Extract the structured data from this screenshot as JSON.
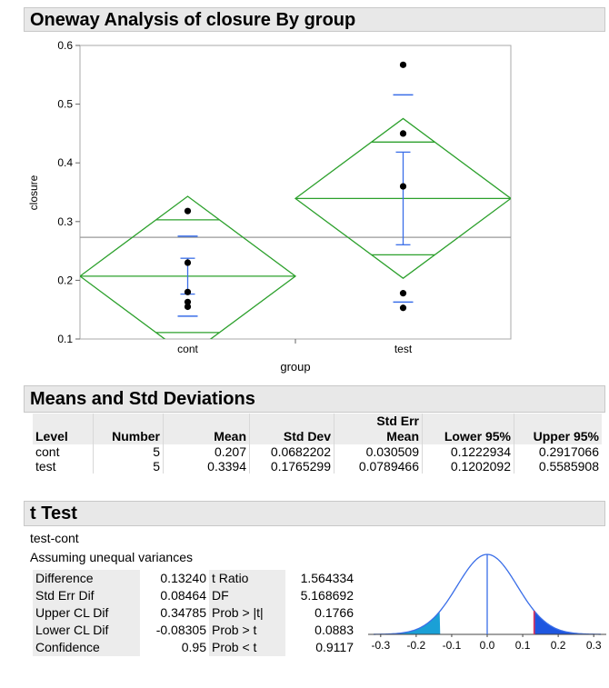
{
  "sections": {
    "oneway_title": "Oneway Analysis of closure By group",
    "means_title": "Means and Std Deviations",
    "ttest_title": "t Test"
  },
  "chart_data": [
    {
      "type": "scatter",
      "title": "Oneway Analysis of closure By group",
      "xlabel": "group",
      "ylabel": "closure",
      "categories": [
        "cont",
        "test"
      ],
      "ylim": [
        0.1,
        0.6
      ],
      "yticks": [
        0.1,
        0.2,
        0.3,
        0.4,
        0.5,
        0.6
      ],
      "grand_mean": 0.2732,
      "points": {
        "cont": [
          0.318,
          0.23,
          0.18,
          0.163,
          0.155
        ],
        "test": [
          0.567,
          0.45,
          0.36,
          0.178,
          0.153
        ]
      },
      "means_diamonds": [
        {
          "level": "cont",
          "mean": 0.207,
          "lower95": 0.071,
          "upper95": 0.343,
          "overlap_low": 0.111,
          "overlap_high": 0.303
        },
        {
          "level": "test",
          "mean": 0.3394,
          "lower95": 0.2034,
          "upper95": 0.4754,
          "overlap_low": 0.2434,
          "overlap_high": 0.4354
        }
      ],
      "error_bars": [
        {
          "level": "cont",
          "mean": 0.207,
          "err_low": 0.1765,
          "err_high": 0.2375,
          "sd_low": 0.1388,
          "sd_high": 0.2752
        },
        {
          "level": "test",
          "mean": 0.3394,
          "err_low": 0.2605,
          "err_high": 0.4183,
          "sd_low": 0.1629,
          "sd_high": 0.5159
        }
      ],
      "colors": {
        "diamond": "#2ca02c",
        "error_bar": "#3a6ee8",
        "mean_line": "#999999",
        "point": "#000000"
      }
    },
    {
      "type": "area",
      "title": "",
      "xlabel": "",
      "ylabel": "",
      "xlim": [
        -0.32,
        0.32
      ],
      "xticks": [
        -0.3,
        -0.2,
        -0.1,
        0.0,
        0.1,
        0.2,
        0.3
      ],
      "estimate": 0.1324,
      "se": 0.08464,
      "colors": {
        "curve": "#3a6ee8",
        "left_tail": "#1aa0d6",
        "right_tail": "#1e56e0",
        "estimate_line": "#d8345f"
      }
    }
  ],
  "means_table": {
    "headers": {
      "level": "Level",
      "number": "Number",
      "mean": "Mean",
      "std_dev": "Std Dev",
      "std_err_top": "Std Err",
      "std_err_bottom": "Mean",
      "lower": "Lower 95%",
      "upper": "Upper 95%"
    },
    "rows": [
      {
        "level": "cont",
        "number": "5",
        "mean": "0.207",
        "std_dev": "0.0682202",
        "std_err": "0.030509",
        "lower": "0.1222934",
        "upper": "0.2917066"
      },
      {
        "level": "test",
        "number": "5",
        "mean": "0.3394",
        "std_dev": "0.1765299",
        "std_err": "0.0789466",
        "lower": "0.1202092",
        "upper": "0.5585908"
      }
    ]
  },
  "ttest": {
    "comparison": "test-cont",
    "assumption": "Assuming unequal variances",
    "rows": [
      {
        "label": "Difference",
        "value": "0.13240",
        "label2": "t Ratio",
        "value2": "1.564334"
      },
      {
        "label": "Std Err Dif",
        "value": "0.08464",
        "label2": "DF",
        "value2": "5.168692"
      },
      {
        "label": "Upper CL Dif",
        "value": "0.34785",
        "label2": "Prob > |t|",
        "value2": "0.1766"
      },
      {
        "label": "Lower CL Dif",
        "value": "-0.08305",
        "label2": "Prob > t",
        "value2": "0.0883"
      },
      {
        "label": "Confidence",
        "value": "0.95",
        "label2": "Prob < t",
        "value2": "0.9117"
      }
    ]
  }
}
